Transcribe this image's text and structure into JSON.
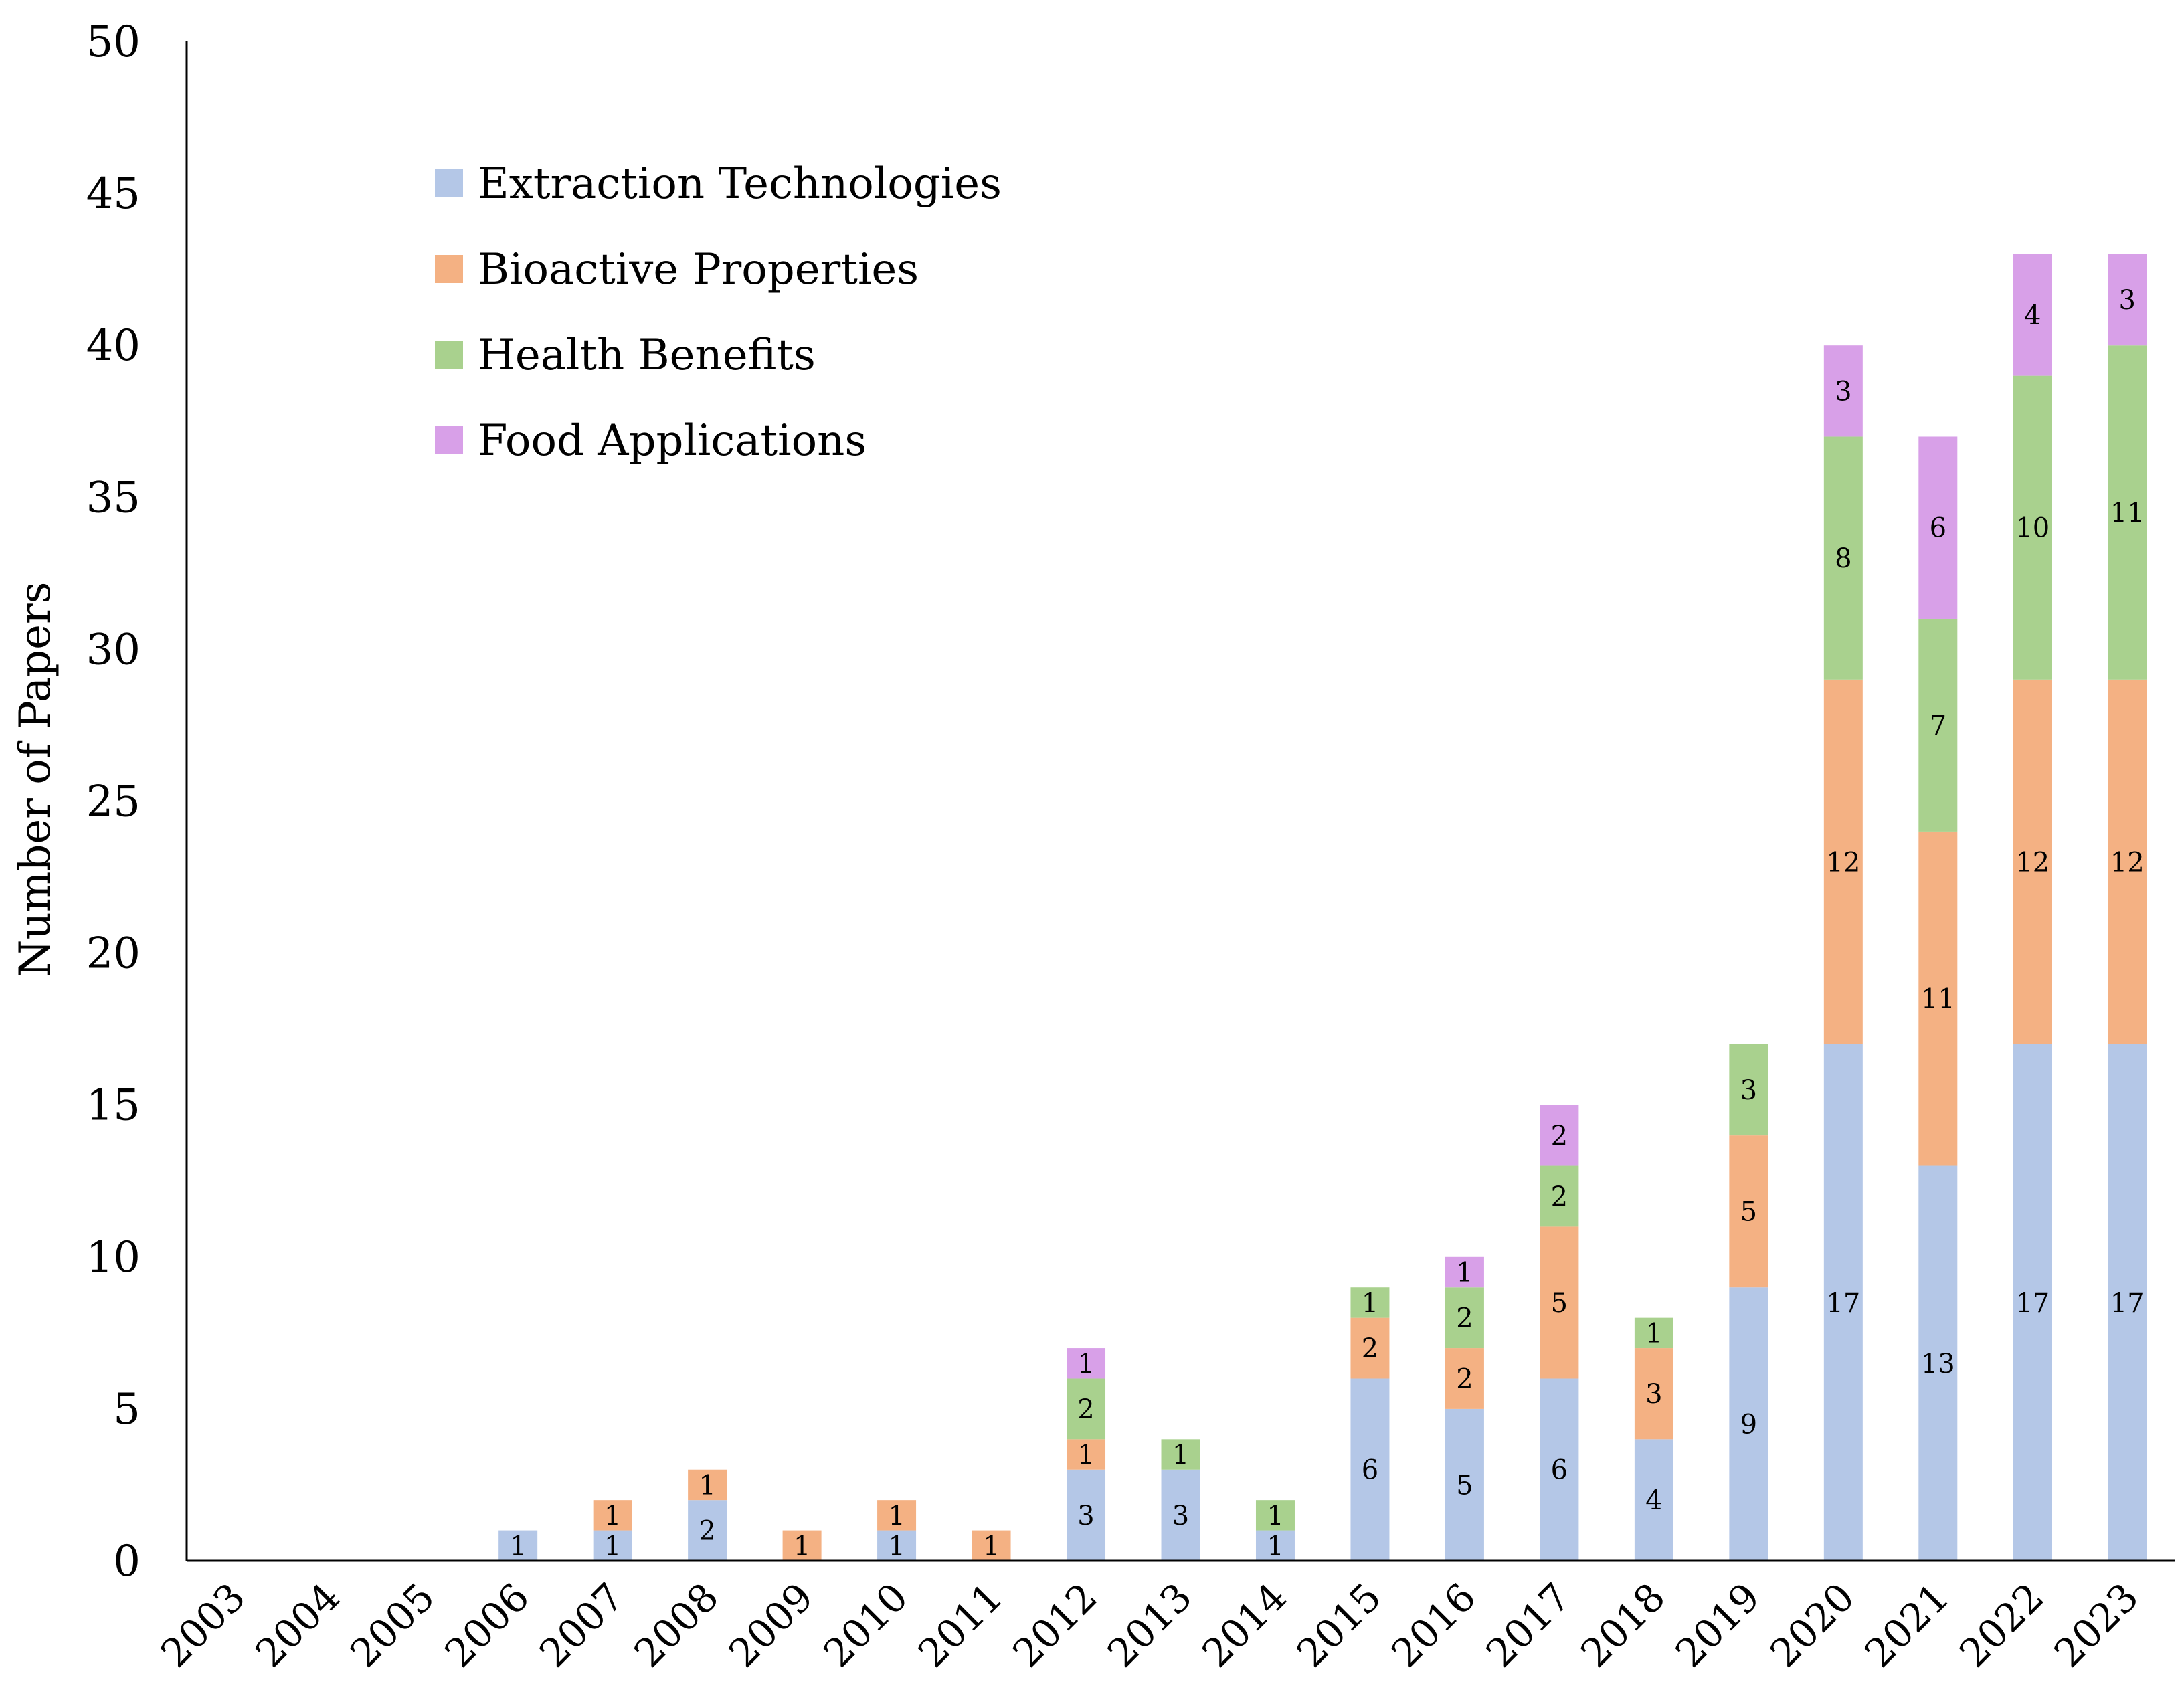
{
  "chart_data": {
    "type": "bar",
    "stacked": true,
    "title": "",
    "xlabel": "",
    "ylabel": "Number of Papers",
    "ylim": [
      0,
      50
    ],
    "yticks": [
      "0",
      "5",
      "10",
      "15",
      "20",
      "25",
      "30",
      "35",
      "40",
      "45",
      "50"
    ],
    "grid": false,
    "legend_position": "top-left",
    "categories": [
      "2003",
      "2004",
      "2005",
      "2006",
      "2007",
      "2008",
      "2009",
      "2010",
      "2011",
      "2012",
      "2013",
      "2014",
      "2015",
      "2016",
      "2017",
      "2018",
      "2019",
      "2020",
      "2021",
      "2022",
      "2023"
    ],
    "series": [
      {
        "name": "Extraction Technologies",
        "color": "#b4c7e7",
        "values": [
          0,
          0,
          0,
          1,
          1,
          2,
          0,
          1,
          0,
          3,
          3,
          1,
          6,
          5,
          6,
          4,
          9,
          17,
          13,
          17,
          17
        ]
      },
      {
        "name": "Bioactive Properties",
        "color": "#f4b183",
        "values": [
          0,
          0,
          0,
          0,
          1,
          1,
          1,
          1,
          1,
          1,
          0,
          0,
          2,
          2,
          5,
          3,
          5,
          12,
          11,
          12,
          12
        ]
      },
      {
        "name": "Health Benefits",
        "color": "#a9d18e",
        "values": [
          0,
          0,
          0,
          0,
          0,
          0,
          0,
          0,
          0,
          2,
          1,
          1,
          1,
          2,
          2,
          1,
          3,
          8,
          7,
          10,
          11
        ]
      },
      {
        "name": "Food Applications",
        "color": "#d8a0e8",
        "values": [
          0,
          0,
          0,
          0,
          0,
          0,
          0,
          0,
          0,
          1,
          0,
          0,
          0,
          1,
          2,
          0,
          0,
          3,
          6,
          4,
          3
        ]
      }
    ]
  }
}
